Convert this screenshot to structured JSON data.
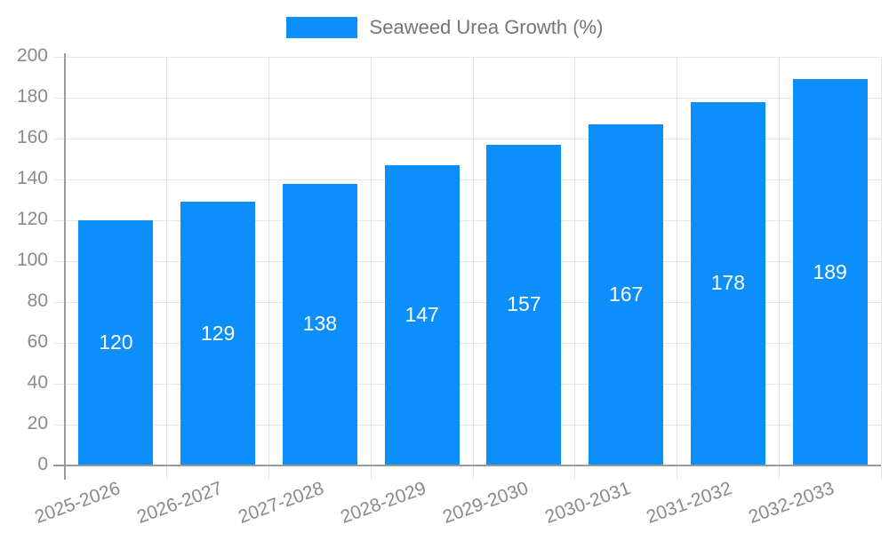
{
  "chart_data": {
    "type": "bar",
    "legend": "Seaweed Urea Growth (%)",
    "legend_position": "top",
    "categories": [
      "2025-2026",
      "2026-2027",
      "2027-2028",
      "2028-2029",
      "2029-2030",
      "2030-2031",
      "2031-2032",
      "2032-2033"
    ],
    "values": [
      120,
      129,
      138,
      147,
      157,
      167,
      178,
      189
    ],
    "ylim": [
      0,
      200
    ],
    "ytick_step": 20,
    "grid": true,
    "x_label_rotation_deg": -20,
    "colors": {
      "bar": "#0d8ffb",
      "bar_value_label": "#ffffff",
      "gridline": "#e5e5e5",
      "axis_line": "#9a9a9a",
      "tick_text": "#8a8a8a",
      "legend_text": "#757575"
    }
  }
}
